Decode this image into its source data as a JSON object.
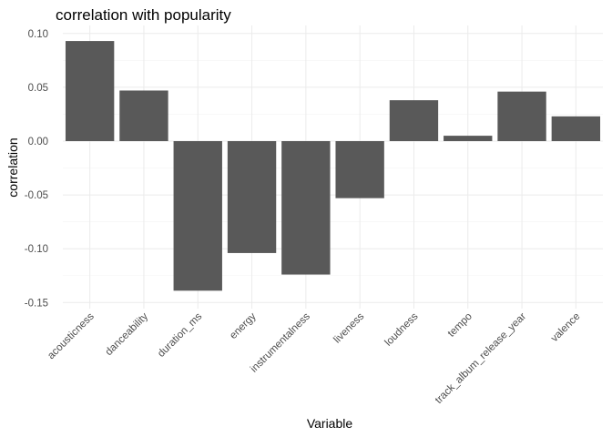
{
  "chart_data": {
    "type": "bar",
    "title": "correlation with popularity",
    "xlabel": "Variable",
    "ylabel": "correlation",
    "categories": [
      "acousticness",
      "danceability",
      "duration_ms",
      "energy",
      "instrumentalness",
      "liveness",
      "loudness",
      "tempo",
      "track_album_release_year",
      "valence"
    ],
    "values": [
      0.093,
      0.047,
      -0.139,
      -0.104,
      -0.124,
      -0.053,
      0.038,
      0.005,
      0.046,
      0.023
    ],
    "yticks": [
      "-0.15",
      "-0.10",
      "-0.05",
      "0.00",
      "0.05",
      "0.10"
    ],
    "ylim": [
      -0.15,
      0.1
    ],
    "grid": true,
    "bar_color": "#595959"
  }
}
